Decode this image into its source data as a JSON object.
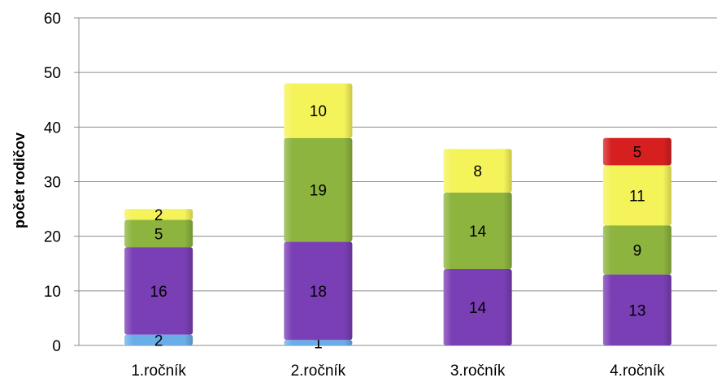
{
  "chart_data": {
    "type": "bar",
    "stacked": true,
    "categories": [
      "1.ročník",
      "2.ročník",
      "3.ročník",
      "4.ročník"
    ],
    "series": [
      {
        "values": [
          2,
          1,
          0,
          0
        ],
        "color": "#6aaee8"
      },
      {
        "values": [
          16,
          18,
          14,
          13
        ],
        "color": "#7a3fb5"
      },
      {
        "values": [
          5,
          19,
          14,
          9
        ],
        "color": "#8db43e"
      },
      {
        "values": [
          2,
          10,
          8,
          11
        ],
        "color": "#f5f35a"
      },
      {
        "values": [
          0,
          0,
          0,
          5
        ],
        "color": "#d62020"
      }
    ],
    "title": "",
    "xlabel": "",
    "ylabel": "počet rodičov",
    "ylim": [
      0,
      60
    ],
    "yticks": [
      0,
      10,
      20,
      30,
      40,
      50,
      60
    ],
    "grid": true
  }
}
